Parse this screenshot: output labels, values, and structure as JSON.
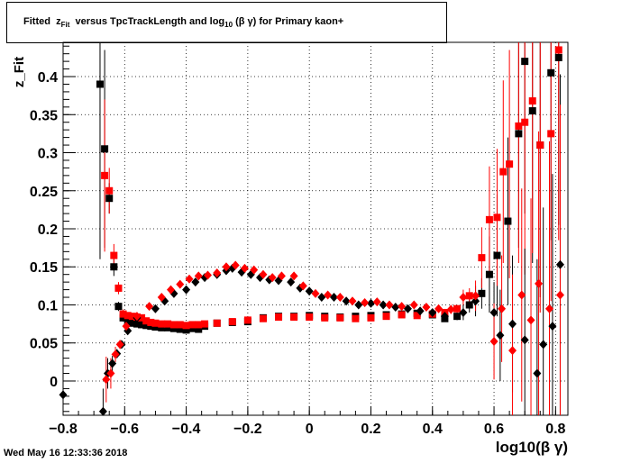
{
  "title": {
    "prefix": "Fitted",
    "z": "z",
    "z_sub": "Fit",
    "middle": "versus TpcTrackLength and log",
    "log_sub": "10",
    "suffix": "(β γ) for Primary kaon+"
  },
  "timestamp": "Wed May 16 12:33:36 2018",
  "chart_data": {
    "type": "scatter",
    "title": "Fitted z_Fit versus TpcTrackLength and log10(β γ) for Primary kaon+",
    "xlabel": "log10(β γ)",
    "ylabel": "z_Fit",
    "xlim": [
      -0.8,
      0.84
    ],
    "ylim": [
      -0.045,
      0.445
    ],
    "x_ticks": [
      -0.8,
      -0.6,
      -0.4,
      -0.2,
      0,
      0.2,
      0.4,
      0.6,
      0.8
    ],
    "x_tick_labels": [
      "−0.8",
      "−0.6",
      "−0.4",
      "−0.2",
      "0",
      "0.2",
      "0.4",
      "0.6",
      "0.8"
    ],
    "y_ticks": [
      0,
      0.05,
      0.1,
      0.15,
      0.2,
      0.25,
      0.3,
      0.35,
      0.4
    ],
    "y_tick_labels": [
      "0",
      "0.05",
      "0.1",
      "0.15",
      "0.2",
      "0.25",
      "0.3",
      "0.35",
      "0.4"
    ],
    "grid": true,
    "series": [
      {
        "marker": "square",
        "color": "#000000",
        "points": [
          {
            "x": -0.68,
            "y": 0.39,
            "err": 0.23
          },
          {
            "x": -0.665,
            "y": 0.305,
            "err": 0.13
          },
          {
            "x": -0.65,
            "y": 0.24,
            "err": 0.02
          },
          {
            "x": -0.635,
            "y": 0.15,
            "err": 0.012
          },
          {
            "x": -0.62,
            "y": 0.098,
            "err": 0.006
          },
          {
            "x": -0.605,
            "y": 0.083,
            "err": 0.005
          },
          {
            "x": -0.59,
            "y": 0.078,
            "err": 0.004
          },
          {
            "x": -0.575,
            "y": 0.076,
            "err": 0.003
          },
          {
            "x": -0.56,
            "y": 0.075,
            "err": 0.003
          },
          {
            "x": -0.545,
            "y": 0.074,
            "err": 0.003
          },
          {
            "x": -0.53,
            "y": 0.073,
            "err": 0.003
          },
          {
            "x": -0.515,
            "y": 0.072,
            "err": 0.003
          },
          {
            "x": -0.5,
            "y": 0.071,
            "err": 0.003
          },
          {
            "x": -0.48,
            "y": 0.07,
            "err": 0.003
          },
          {
            "x": -0.46,
            "y": 0.07,
            "err": 0.003
          },
          {
            "x": -0.44,
            "y": 0.069,
            "err": 0.003
          },
          {
            "x": -0.42,
            "y": 0.068,
            "err": 0.003
          },
          {
            "x": -0.4,
            "y": 0.067,
            "err": 0.003
          },
          {
            "x": -0.38,
            "y": 0.069,
            "err": 0.003
          },
          {
            "x": -0.36,
            "y": 0.068,
            "err": 0.003
          },
          {
            "x": -0.34,
            "y": 0.072,
            "err": 0.003
          },
          {
            "x": -0.3,
            "y": 0.076,
            "err": 0.003
          },
          {
            "x": -0.25,
            "y": 0.077,
            "err": 0.003
          },
          {
            "x": -0.2,
            "y": 0.078,
            "err": 0.003
          },
          {
            "x": -0.15,
            "y": 0.083,
            "err": 0.003
          },
          {
            "x": -0.1,
            "y": 0.085,
            "err": 0.003
          },
          {
            "x": -0.05,
            "y": 0.085,
            "err": 0.003
          },
          {
            "x": 0,
            "y": 0.086,
            "err": 0.003
          },
          {
            "x": 0.05,
            "y": 0.085,
            "err": 0.003
          },
          {
            "x": 0.1,
            "y": 0.084,
            "err": 0.003
          },
          {
            "x": 0.15,
            "y": 0.085,
            "err": 0.003
          },
          {
            "x": 0.2,
            "y": 0.086,
            "err": 0.003
          },
          {
            "x": 0.25,
            "y": 0.087,
            "err": 0.003
          },
          {
            "x": 0.3,
            "y": 0.088,
            "err": 0.003
          },
          {
            "x": 0.35,
            "y": 0.089,
            "err": 0.003
          },
          {
            "x": 0.4,
            "y": 0.087,
            "err": 0.004
          },
          {
            "x": 0.44,
            "y": 0.082,
            "err": 0.004
          },
          {
            "x": 0.48,
            "y": 0.085,
            "err": 0.005
          },
          {
            "x": 0.52,
            "y": 0.1,
            "err": 0.01
          },
          {
            "x": 0.56,
            "y": 0.115,
            "err": 0.02
          },
          {
            "x": 0.585,
            "y": 0.14,
            "err": 0.05
          },
          {
            "x": 0.61,
            "y": 0.165,
            "err": 0.08
          },
          {
            "x": 0.645,
            "y": 0.21,
            "err": 0.11
          },
          {
            "x": 0.68,
            "y": 0.325,
            "err": 0.15
          },
          {
            "x": 0.7,
            "y": 0.42,
            "err": 0.2
          },
          {
            "x": 0.725,
            "y": 0.355,
            "err": 0.2
          },
          {
            "x": 0.75,
            "y": 0.31,
            "err": 0.2
          },
          {
            "x": 0.785,
            "y": 0.405,
            "err": 0.22
          },
          {
            "x": 0.81,
            "y": 0.425,
            "err": 0.22
          }
        ]
      },
      {
        "marker": "square",
        "color": "#ff0000",
        "points": [
          {
            "x": -0.665,
            "y": 0.27,
            "err": 0.1
          },
          {
            "x": -0.65,
            "y": 0.25,
            "err": 0.03
          },
          {
            "x": -0.635,
            "y": 0.165,
            "err": 0.015
          },
          {
            "x": -0.62,
            "y": 0.122,
            "err": 0.008
          },
          {
            "x": -0.605,
            "y": 0.088,
            "err": 0.006
          },
          {
            "x": -0.59,
            "y": 0.086,
            "err": 0.004
          },
          {
            "x": -0.575,
            "y": 0.085,
            "err": 0.004
          },
          {
            "x": -0.56,
            "y": 0.084,
            "err": 0.003
          },
          {
            "x": -0.545,
            "y": 0.083,
            "err": 0.003
          },
          {
            "x": -0.53,
            "y": 0.079,
            "err": 0.003
          },
          {
            "x": -0.515,
            "y": 0.077,
            "err": 0.003
          },
          {
            "x": -0.5,
            "y": 0.076,
            "err": 0.003
          },
          {
            "x": -0.48,
            "y": 0.075,
            "err": 0.003
          },
          {
            "x": -0.46,
            "y": 0.075,
            "err": 0.003
          },
          {
            "x": -0.44,
            "y": 0.074,
            "err": 0.003
          },
          {
            "x": -0.42,
            "y": 0.074,
            "err": 0.003
          },
          {
            "x": -0.4,
            "y": 0.073,
            "err": 0.003
          },
          {
            "x": -0.38,
            "y": 0.074,
            "err": 0.003
          },
          {
            "x": -0.36,
            "y": 0.074,
            "err": 0.003
          },
          {
            "x": -0.34,
            "y": 0.075,
            "err": 0.003
          },
          {
            "x": -0.3,
            "y": 0.076,
            "err": 0.003
          },
          {
            "x": -0.25,
            "y": 0.078,
            "err": 0.003
          },
          {
            "x": -0.2,
            "y": 0.08,
            "err": 0.003
          },
          {
            "x": -0.15,
            "y": 0.082,
            "err": 0.003
          },
          {
            "x": -0.1,
            "y": 0.084,
            "err": 0.003
          },
          {
            "x": -0.05,
            "y": 0.084,
            "err": 0.003
          },
          {
            "x": 0,
            "y": 0.084,
            "err": 0.003
          },
          {
            "x": 0.05,
            "y": 0.083,
            "err": 0.003
          },
          {
            "x": 0.1,
            "y": 0.083,
            "err": 0.003
          },
          {
            "x": 0.15,
            "y": 0.082,
            "err": 0.003
          },
          {
            "x": 0.2,
            "y": 0.083,
            "err": 0.003
          },
          {
            "x": 0.25,
            "y": 0.085,
            "err": 0.003
          },
          {
            "x": 0.3,
            "y": 0.087,
            "err": 0.003
          },
          {
            "x": 0.35,
            "y": 0.086,
            "err": 0.003
          },
          {
            "x": 0.4,
            "y": 0.088,
            "err": 0.004
          },
          {
            "x": 0.44,
            "y": 0.09,
            "err": 0.004
          },
          {
            "x": 0.48,
            "y": 0.095,
            "err": 0.005
          },
          {
            "x": 0.52,
            "y": 0.112,
            "err": 0.01
          },
          {
            "x": 0.56,
            "y": 0.162,
            "err": 0.04
          },
          {
            "x": 0.585,
            "y": 0.212,
            "err": 0.07
          },
          {
            "x": 0.61,
            "y": 0.215,
            "err": 0.09
          },
          {
            "x": 0.63,
            "y": 0.275,
            "err": 0.12
          },
          {
            "x": 0.65,
            "y": 0.285,
            "err": 0.15
          },
          {
            "x": 0.68,
            "y": 0.335,
            "err": 0.18
          },
          {
            "x": 0.7,
            "y": 0.34,
            "err": 0.2
          },
          {
            "x": 0.725,
            "y": 0.368,
            "err": 0.2
          },
          {
            "x": 0.75,
            "y": 0.31,
            "err": 0.22
          },
          {
            "x": 0.785,
            "y": 0.325,
            "err": 0.22
          },
          {
            "x": 0.81,
            "y": 0.435,
            "err": 0.25
          }
        ]
      },
      {
        "marker": "diamond",
        "color": "#000000",
        "points": [
          {
            "x": -0.8,
            "y": -0.018,
            "err": 0.008
          },
          {
            "x": -0.67,
            "y": -0.04,
            "err": 0.03
          },
          {
            "x": -0.655,
            "y": 0.01,
            "err": 0.02
          },
          {
            "x": -0.64,
            "y": 0.023,
            "err": 0.01
          },
          {
            "x": -0.625,
            "y": 0.036,
            "err": 0.006
          },
          {
            "x": -0.61,
            "y": 0.048,
            "err": 0.004
          },
          {
            "x": -0.59,
            "y": 0.066,
            "err": 0.003
          },
          {
            "x": -0.56,
            "y": 0.083,
            "err": 0.003
          },
          {
            "x": -0.5,
            "y": 0.095,
            "err": 0.003
          },
          {
            "x": -0.47,
            "y": 0.105,
            "err": 0.003
          },
          {
            "x": -0.44,
            "y": 0.115,
            "err": 0.003
          },
          {
            "x": -0.4,
            "y": 0.12,
            "err": 0.003
          },
          {
            "x": -0.37,
            "y": 0.13,
            "err": 0.003
          },
          {
            "x": -0.34,
            "y": 0.136,
            "err": 0.003
          },
          {
            "x": -0.3,
            "y": 0.14,
            "err": 0.003
          },
          {
            "x": -0.27,
            "y": 0.145,
            "err": 0.003
          },
          {
            "x": -0.25,
            "y": 0.148,
            "err": 0.003
          },
          {
            "x": -0.22,
            "y": 0.143,
            "err": 0.003
          },
          {
            "x": -0.19,
            "y": 0.14,
            "err": 0.003
          },
          {
            "x": -0.16,
            "y": 0.136,
            "err": 0.003
          },
          {
            "x": -0.13,
            "y": 0.133,
            "err": 0.003
          },
          {
            "x": -0.1,
            "y": 0.132,
            "err": 0.003
          },
          {
            "x": -0.06,
            "y": 0.13,
            "err": 0.003
          },
          {
            "x": -0.03,
            "y": 0.122,
            "err": 0.003
          },
          {
            "x": 0,
            "y": 0.118,
            "err": 0.003
          },
          {
            "x": 0.04,
            "y": 0.11,
            "err": 0.003
          },
          {
            "x": 0.08,
            "y": 0.11,
            "err": 0.003
          },
          {
            "x": 0.12,
            "y": 0.105,
            "err": 0.003
          },
          {
            "x": 0.16,
            "y": 0.1,
            "err": 0.003
          },
          {
            "x": 0.2,
            "y": 0.102,
            "err": 0.003
          },
          {
            "x": 0.24,
            "y": 0.1,
            "err": 0.003
          },
          {
            "x": 0.28,
            "y": 0.097,
            "err": 0.003
          },
          {
            "x": 0.32,
            "y": 0.095,
            "err": 0.003
          },
          {
            "x": 0.36,
            "y": 0.092,
            "err": 0.003
          },
          {
            "x": 0.4,
            "y": 0.09,
            "err": 0.004
          },
          {
            "x": 0.44,
            "y": 0.085,
            "err": 0.005
          },
          {
            "x": 0.5,
            "y": 0.09,
            "err": 0.01
          },
          {
            "x": 0.54,
            "y": 0.105,
            "err": 0.02
          },
          {
            "x": 0.6,
            "y": 0.09,
            "err": 0.04
          },
          {
            "x": 0.62,
            "y": 0.06,
            "err": 0.06
          },
          {
            "x": 0.66,
            "y": 0.075,
            "err": 0.09
          },
          {
            "x": 0.7,
            "y": 0.054,
            "err": 0.12
          },
          {
            "x": 0.74,
            "y": 0.01,
            "err": 0.15
          },
          {
            "x": 0.76,
            "y": 0.048,
            "err": 0.18
          },
          {
            "x": 0.79,
            "y": 0.072,
            "err": 0.2
          },
          {
            "x": 0.815,
            "y": 0.153,
            "err": 0.25
          }
        ]
      },
      {
        "marker": "diamond",
        "color": "#ff0000",
        "points": [
          {
            "x": -0.66,
            "y": 0.002,
            "err": 0.03
          },
          {
            "x": -0.645,
            "y": 0.01,
            "err": 0.02
          },
          {
            "x": -0.63,
            "y": 0.035,
            "err": 0.01
          },
          {
            "x": -0.615,
            "y": 0.048,
            "err": 0.006
          },
          {
            "x": -0.595,
            "y": 0.072,
            "err": 0.004
          },
          {
            "x": -0.56,
            "y": 0.085,
            "err": 0.003
          },
          {
            "x": -0.52,
            "y": 0.098,
            "err": 0.003
          },
          {
            "x": -0.48,
            "y": 0.11,
            "err": 0.003
          },
          {
            "x": -0.45,
            "y": 0.12,
            "err": 0.003
          },
          {
            "x": -0.42,
            "y": 0.127,
            "err": 0.003
          },
          {
            "x": -0.39,
            "y": 0.134,
            "err": 0.003
          },
          {
            "x": -0.36,
            "y": 0.138,
            "err": 0.003
          },
          {
            "x": -0.33,
            "y": 0.139,
            "err": 0.003
          },
          {
            "x": -0.3,
            "y": 0.142,
            "err": 0.003
          },
          {
            "x": -0.27,
            "y": 0.15,
            "err": 0.003
          },
          {
            "x": -0.24,
            "y": 0.152,
            "err": 0.003
          },
          {
            "x": -0.21,
            "y": 0.148,
            "err": 0.003
          },
          {
            "x": -0.18,
            "y": 0.146,
            "err": 0.003
          },
          {
            "x": -0.15,
            "y": 0.14,
            "err": 0.003
          },
          {
            "x": -0.12,
            "y": 0.136,
            "err": 0.003
          },
          {
            "x": -0.09,
            "y": 0.138,
            "err": 0.003
          },
          {
            "x": -0.05,
            "y": 0.138,
            "err": 0.003
          },
          {
            "x": -0.02,
            "y": 0.125,
            "err": 0.003
          },
          {
            "x": 0.02,
            "y": 0.115,
            "err": 0.003
          },
          {
            "x": 0.06,
            "y": 0.113,
            "err": 0.003
          },
          {
            "x": 0.1,
            "y": 0.11,
            "err": 0.003
          },
          {
            "x": 0.14,
            "y": 0.105,
            "err": 0.003
          },
          {
            "x": 0.18,
            "y": 0.103,
            "err": 0.003
          },
          {
            "x": 0.22,
            "y": 0.104,
            "err": 0.003
          },
          {
            "x": 0.26,
            "y": 0.1,
            "err": 0.003
          },
          {
            "x": 0.3,
            "y": 0.098,
            "err": 0.003
          },
          {
            "x": 0.34,
            "y": 0.1,
            "err": 0.003
          },
          {
            "x": 0.38,
            "y": 0.097,
            "err": 0.004
          },
          {
            "x": 0.42,
            "y": 0.095,
            "err": 0.005
          },
          {
            "x": 0.46,
            "y": 0.094,
            "err": 0.006
          },
          {
            "x": 0.5,
            "y": 0.11,
            "err": 0.01
          },
          {
            "x": 0.54,
            "y": 0.112,
            "err": 0.02
          },
          {
            "x": 0.6,
            "y": 0.052,
            "err": 0.05
          },
          {
            "x": 0.625,
            "y": 0.095,
            "err": 0.07
          },
          {
            "x": 0.66,
            "y": 0.04,
            "err": 0.1
          },
          {
            "x": 0.69,
            "y": 0.113,
            "err": 0.14
          },
          {
            "x": 0.72,
            "y": 0.08,
            "err": 0.16
          },
          {
            "x": 0.745,
            "y": 0.128,
            "err": 0.2
          },
          {
            "x": 0.78,
            "y": 0.095,
            "err": 0.22
          },
          {
            "x": 0.815,
            "y": 0.113,
            "err": 0.25
          }
        ]
      }
    ]
  }
}
